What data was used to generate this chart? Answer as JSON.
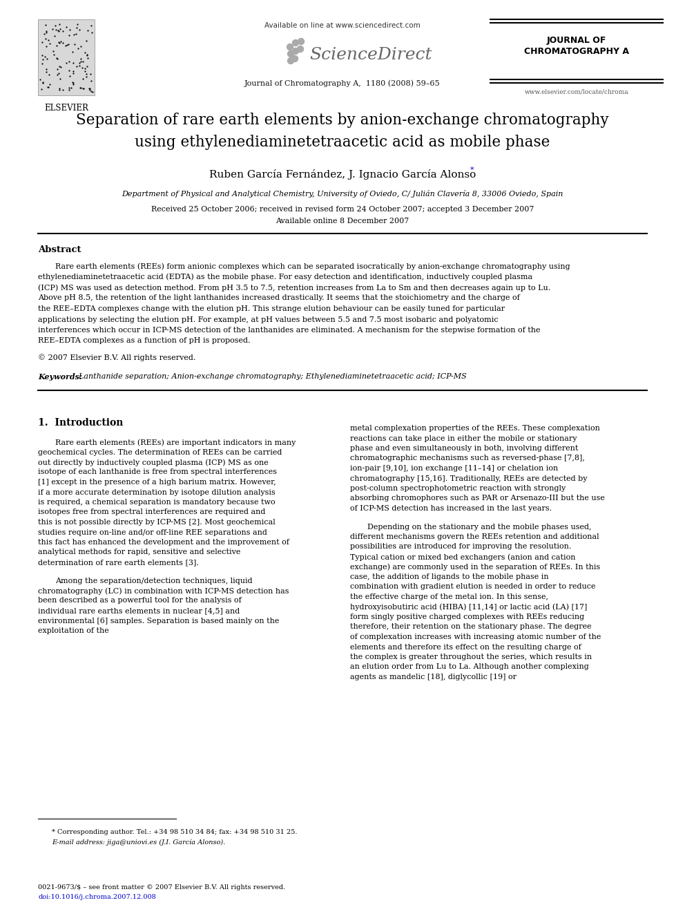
{
  "background_color": "#ffffff",
  "page_width": 9.92,
  "page_height": 13.23,
  "header": {
    "available_online": "Available on line at www.sciencedirect.com",
    "sciencedirect": "ScienceDirect",
    "journal_name_center": "Journal of Chromatography A,  1180 (2008) 59–65",
    "journal_name_right_line1": "JOURNAL OF",
    "journal_name_right_line2": "CHROMATOGRAPHY A",
    "website": "www.elsevier.com/locate/chroma",
    "elsevier_text": "ELSEVIER"
  },
  "title_line1": "Separation of rare earth elements by anion-exchange chromatography",
  "title_line2": "using ethylenediaminetetraacetic acid as mobile phase",
  "authors": "Ruben García Fernández, J. Ignacio García Alonso",
  "author_star": "*",
  "affiliation": "Department of Physical and Analytical Chemistry, University of Oviedo, C/ Julián Clavería 8, 33006 Oviedo, Spain",
  "received": "Received 25 October 2006; received in revised form 24 October 2007; accepted 3 December 2007",
  "available_online_date": "Available online 8 December 2007",
  "abstract_title": "Abstract",
  "abstract_text": "Rare earth elements (REEs) form anionic complexes which can be separated isocratically by anion-exchange chromatography using ethylenediaminetetraacetic acid (EDTA) as the mobile phase. For easy detection and identification, inductively coupled plasma (ICP) MS was used as detection method. From pH 3.5 to 7.5, retention increases from La to Sm and then decreases again up to Lu. Above pH 8.5, the retention of the light lanthanides increased drastically. It seems that the stoichiometry and the charge of the REE–EDTA complexes change with the elution pH. This strange elution behaviour can be easily tuned for particular applications by selecting the elution pH. For example, at pH values between 5.5 and 7.5 most isobaric and polyatomic interferences which occur in ICP-MS detection of the lanthanides are eliminated. A mechanism for the stepwise formation of the REE–EDTA complexes as a function of pH is proposed.",
  "copyright": "© 2007 Elsevier B.V. All rights reserved.",
  "keywords_label": "Keywords:",
  "keywords_text": "  Lanthanide separation; Anion-exchange chromatography; Ethylenediaminetetraacetic acid; ICP-MS",
  "section1_title": "1.  Introduction",
  "col1_para1": "Rare earth elements (REEs) are important indicators in many geochemical cycles. The determination of REEs can be carried out directly by inductively coupled plasma (ICP) MS as one isotope of each lanthanide is free from spectral interferences [1] except in the presence of a high barium matrix. However, if a more accurate determination by isotope dilution analysis is required, a chemical separation is mandatory because two isotopes free from spectral interferences are required and this is not possible directly by ICP-MS [2]. Most geochemical studies require on-line and/or off-line REE separations and this fact has enhanced the development and the improvement of analytical methods for rapid, sensitive and selective determination of rare earth elements [3].",
  "col1_para2": "Among the separation/detection techniques, liquid chromatography (LC) in combination with ICP-MS detection has been described as a powerful tool for the analysis of individual rare earths elements in nuclear [4,5] and environmental [6] samples. Separation is based mainly on the exploitation of the",
  "col2_para1": "metal complexation properties of the REEs. These complexation reactions can take place in either the mobile or stationary phase and even simultaneously in both, involving different chromatographic mechanisms such as reversed-phase [7,8], ion-pair [9,10], ion exchange [11–14] or chelation ion chromatography [15,16]. Traditionally, REEs are detected by post-column spectrophotometric reaction with strongly absorbing chromophores such as PAR or Arsenazo-III but the use of ICP-MS detection has increased in the last years.",
  "col2_para2": "Depending on the stationary and the mobile phases used, different mechanisms govern the REEs retention and additional possibilities are introduced for improving the resolution. Typical cation or mixed bed exchangers (anion and cation exchange) are commonly used in the separation of REEs. In this case, the addition of ligands to the mobile phase in combination with gradient elution is needed in order to reduce the effective charge of the metal ion. In this sense, hydroxyisobutiric acid (HIBA) [11,14] or lactic acid (LA) [17] form singly positive charged complexes with REEs reducing therefore, their retention on the stationary phase. The degree of complexation increases with increasing atomic number of the elements and therefore its effect on the resulting charge of the complex is greater throughout the series, which results in an elution order from Lu to La. Although another complexing agents as mandelic [18], diglycollic [19] or",
  "footnote_line": "* Corresponding author. Tel.: +34 98 510 34 84; fax: +34 98 510 31 25.",
  "footnote_email": "E-mail address: jiga@uniovi.es (J.I. García Alonso).",
  "footer_line1": "0021-9673/$ – see front matter © 2007 Elsevier B.V. All rights reserved.",
  "footer_line2": "doi:10.1016/j.chroma.2007.12.008"
}
